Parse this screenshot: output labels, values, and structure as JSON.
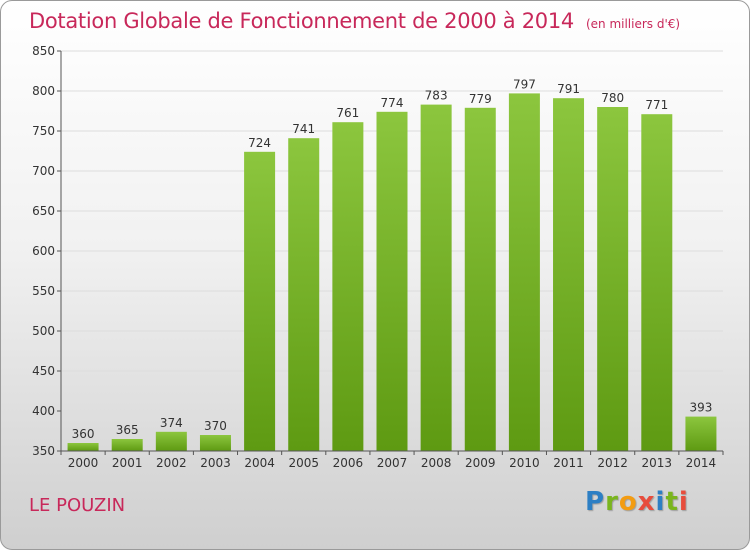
{
  "title": "Dotation Globale de Fonctionnement de 2000 à 2014",
  "unit_note": "(en milliers d'€)",
  "commune": "LE POUZIN",
  "logo": {
    "p": "P",
    "r": "r",
    "o": "o",
    "x": "x",
    "i1": "i",
    "t": "t",
    "i2": "i",
    "full": "Proxiti"
  },
  "colors": {
    "bar": "#7ab51d",
    "title": "#c8285a"
  },
  "chart_data": {
    "type": "bar",
    "categories": [
      "2000",
      "2001",
      "2002",
      "2003",
      "2004",
      "2005",
      "2006",
      "2007",
      "2008",
      "2009",
      "2010",
      "2011",
      "2012",
      "2013",
      "2014"
    ],
    "values": [
      360,
      365,
      374,
      370,
      724,
      741,
      761,
      774,
      783,
      779,
      797,
      791,
      780,
      771,
      393
    ],
    "ylim": [
      350,
      850
    ],
    "yticks": [
      350,
      400,
      450,
      500,
      550,
      600,
      650,
      700,
      750,
      800,
      850
    ],
    "grid": true
  }
}
